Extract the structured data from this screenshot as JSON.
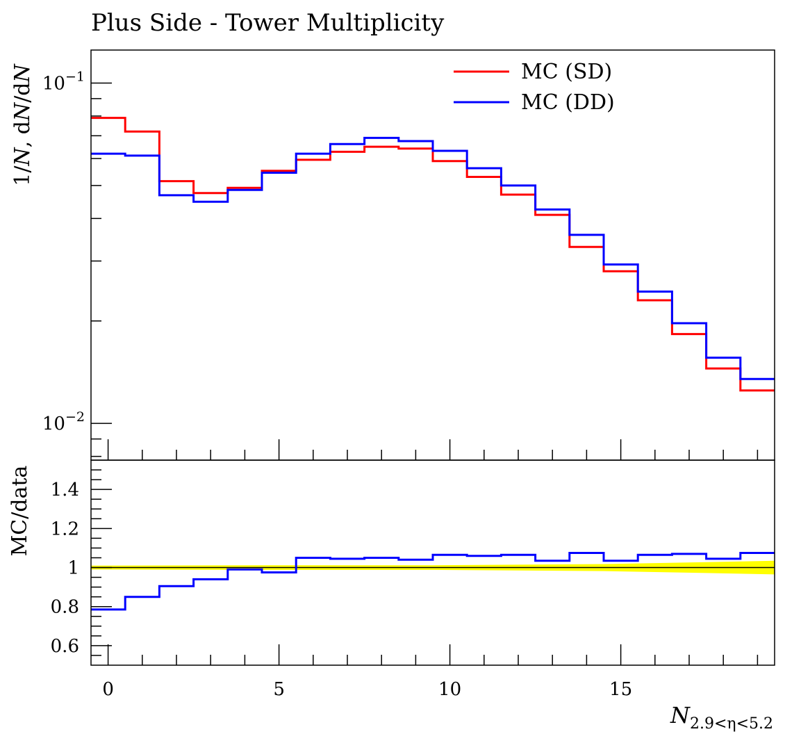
{
  "chart_data": [
    {
      "type": "line",
      "title": "Plus Side - Tower Multiplicity",
      "ylabel": "1/N, dN/dN",
      "xlabel": "",
      "yscale": "log",
      "ylim": [
        0.0078,
        0.125
      ],
      "xlim": [
        -0.5,
        19.5
      ],
      "yticks": [
        {
          "value": 0.1,
          "base": "10",
          "exp": "−1"
        },
        {
          "value": 0.01,
          "base": "10",
          "exp": "−2"
        }
      ],
      "legend": "top-right",
      "bin_edges": [
        -0.5,
        0.5,
        1.5,
        2.5,
        3.5,
        4.5,
        5.5,
        6.5,
        7.5,
        8.5,
        9.5,
        10.5,
        11.5,
        12.5,
        13.5,
        14.5,
        15.5,
        16.5,
        17.5,
        18.5,
        19.5
      ],
      "series": [
        {
          "name": "MC (SD)",
          "color": "#ff0000",
          "values": [
            0.079,
            0.072,
            0.0515,
            0.0475,
            0.0492,
            0.0552,
            0.0595,
            0.0628,
            0.065,
            0.0642,
            0.059,
            0.053,
            0.047,
            0.041,
            0.033,
            0.028,
            0.023,
            0.0183,
            0.0145,
            0.0125
          ]
        },
        {
          "name": "MC (DD)",
          "color": "#0000ff",
          "values": [
            0.062,
            0.0612,
            0.0468,
            0.0448,
            0.0485,
            0.0545,
            0.062,
            0.0662,
            0.069,
            0.0675,
            0.0632,
            0.0562,
            0.05,
            0.0425,
            0.0358,
            0.0293,
            0.0244,
            0.0197,
            0.0156,
            0.0135
          ]
        }
      ]
    },
    {
      "type": "line",
      "ylabel": "MC/data",
      "xlabel": "N_{2.9<η<5.2}",
      "xlim": [
        -0.5,
        19.5
      ],
      "ylim": [
        0.5,
        1.55
      ],
      "yticks": [
        0.6,
        0.8,
        1,
        1.2,
        1.4
      ],
      "ytick_labels": [
        "0.6",
        "0.8",
        "1",
        "1.2",
        "1.4"
      ],
      "xticks": [
        0,
        5,
        10,
        15
      ],
      "xtick_labels": [
        "0",
        "5",
        "10",
        "15"
      ],
      "reference_line": 1,
      "band": {
        "color": "#ffff00",
        "x": [
          -0.5,
          4.5,
          9.5,
          14.5,
          17.5,
          19.5
        ],
        "half_width": [
          0.01,
          0.012,
          0.012,
          0.018,
          0.028,
          0.035
        ]
      },
      "bin_edges": [
        -0.5,
        0.5,
        1.5,
        2.5,
        3.5,
        4.5,
        5.5,
        6.5,
        7.5,
        8.5,
        9.5,
        10.5,
        11.5,
        12.5,
        13.5,
        14.5,
        15.5,
        16.5,
        17.5,
        18.5,
        19.5
      ],
      "series": [
        {
          "name": "MC (DD)",
          "color": "#0000ff",
          "values": [
            0.785,
            0.85,
            0.905,
            0.94,
            0.99,
            0.975,
            1.05,
            1.045,
            1.05,
            1.04,
            1.065,
            1.06,
            1.065,
            1.035,
            1.075,
            1.035,
            1.065,
            1.07,
            1.045,
            1.075
          ]
        }
      ]
    }
  ]
}
